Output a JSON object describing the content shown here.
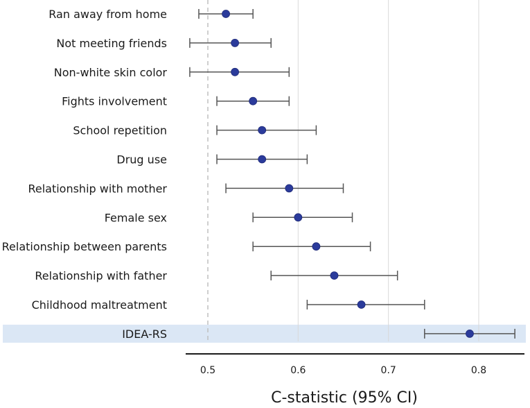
{
  "chart_data": {
    "type": "forest",
    "xlabel": "C-statistic (95% CI)",
    "xlim": [
      0.48,
      0.85
    ],
    "xticks": [
      0.5,
      0.6,
      0.7,
      0.8
    ],
    "reference_line": 0.5,
    "highlighted_row": "IDEA-RS",
    "colors": {
      "point": "#2b3b9b",
      "ci_line": "#555555",
      "grid": "#d9d9d9",
      "highlight": "#dbe7f5",
      "reference": "#bfbfbf"
    },
    "rows": [
      {
        "label": "Ran away from home",
        "estimate": 0.52,
        "lower": 0.49,
        "upper": 0.55
      },
      {
        "label": "Not meeting friends",
        "estimate": 0.53,
        "lower": 0.48,
        "upper": 0.57
      },
      {
        "label": "Non-white skin color",
        "estimate": 0.53,
        "lower": 0.48,
        "upper": 0.59
      },
      {
        "label": "Fights involvement",
        "estimate": 0.55,
        "lower": 0.51,
        "upper": 0.59
      },
      {
        "label": "School repetition",
        "estimate": 0.56,
        "lower": 0.51,
        "upper": 0.62
      },
      {
        "label": "Drug use",
        "estimate": 0.56,
        "lower": 0.51,
        "upper": 0.61
      },
      {
        "label": "Relationship with mother",
        "estimate": 0.59,
        "lower": 0.52,
        "upper": 0.65
      },
      {
        "label": "Female sex",
        "estimate": 0.6,
        "lower": 0.55,
        "upper": 0.66
      },
      {
        "label": "Relationship between parents",
        "estimate": 0.62,
        "lower": 0.55,
        "upper": 0.68
      },
      {
        "label": "Relationship with father",
        "estimate": 0.64,
        "lower": 0.57,
        "upper": 0.71
      },
      {
        "label": "Childhood maltreatment",
        "estimate": 0.67,
        "lower": 0.61,
        "upper": 0.74
      },
      {
        "label": "IDEA-RS",
        "estimate": 0.79,
        "lower": 0.74,
        "upper": 0.84
      }
    ]
  }
}
